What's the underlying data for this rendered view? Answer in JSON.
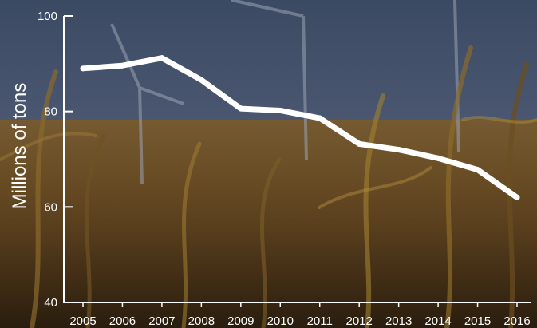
{
  "chart_data": {
    "type": "line",
    "ylabel": "Millions of tons",
    "x": [
      "2005",
      "2006",
      "2007",
      "2008",
      "2009",
      "2010",
      "2011",
      "2012",
      "2013",
      "2014",
      "2015",
      "2016"
    ],
    "series": [
      {
        "values": [
          89.0,
          89.6,
          91.2,
          86.6,
          80.6,
          80.2,
          78.6,
          73.2,
          72.0,
          70.2,
          67.8,
          62.0
        ]
      }
    ],
    "ylim": [
      40,
      100
    ],
    "yticks": [
      40,
      60,
      80,
      100
    ],
    "grid": false,
    "colors": {
      "line": "#ffffff",
      "axis": "#ffffff",
      "text": "#ffffff"
    }
  }
}
